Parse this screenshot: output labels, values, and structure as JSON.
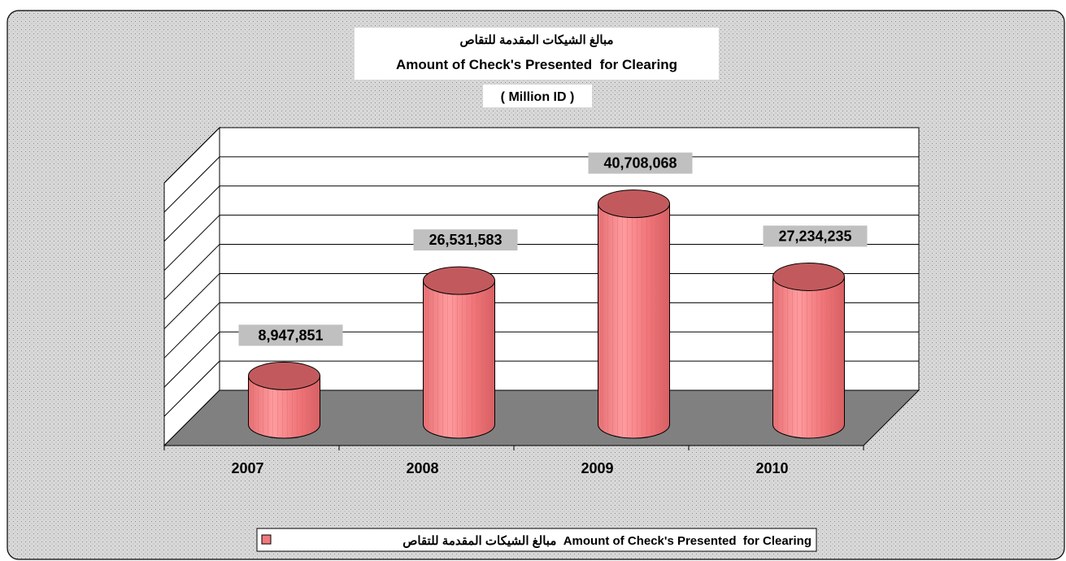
{
  "chart_data": {
    "type": "bar",
    "title_ar": "مبالغ الشيكات المقدمة للتقاص",
    "title_en": "Amount of Check's Presented  for Clearing",
    "subtitle": "( Million ID )",
    "categories": [
      "2007",
      "2008",
      "2009",
      "2010"
    ],
    "series": [
      {
        "name": "مبالغ الشيكات المقدمة للتقاص  Amount of Check's Presented  for Clearing",
        "values": [
          8947851,
          26531583,
          40708068,
          27234235
        ],
        "value_labels": [
          "8,947,851",
          "26,531,583",
          "40,708,068",
          "27,234,235"
        ]
      }
    ],
    "ylim": [
      0,
      45000000
    ],
    "y_gridlines": 9,
    "y_tick_labels": false,
    "grid": true,
    "legend_position": "bottom",
    "shape": "cylinder-3d",
    "colors": {
      "bar_fill": "#f0797d",
      "bar_top": "#c25a5d",
      "floor": "#808080",
      "chart_area": "#d6d6d6",
      "label_bg": "#c0c0c0"
    }
  }
}
